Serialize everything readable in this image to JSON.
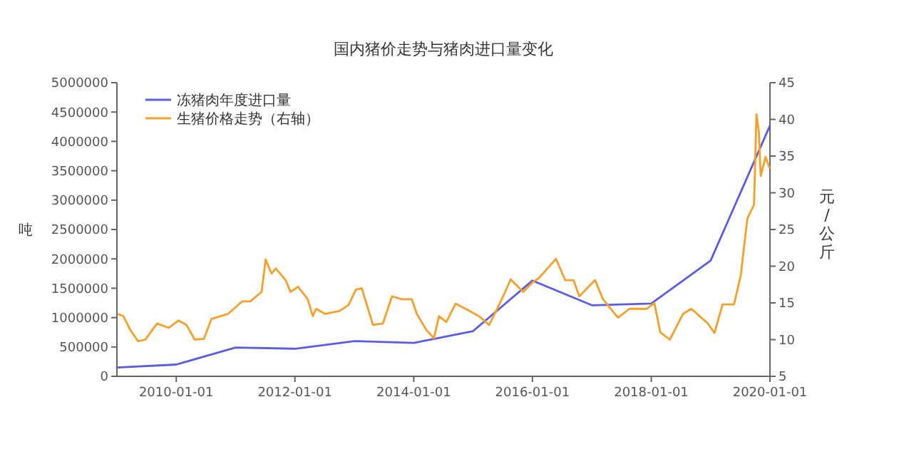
{
  "chart_data": {
    "type": "line",
    "title": "国内猪价走势与猪肉进口量变化",
    "ylabel": "吨",
    "y2label": "元/公斤",
    "legend": "top left",
    "grid": false,
    "line_style": "solid",
    "xlim": [
      "2009-01-01",
      "2020-01-01"
    ],
    "xticks": [
      "2010-01-01",
      "2012-01-01",
      "2014-01-01",
      "2016-01-01",
      "2018-01-01",
      "2020-01-01"
    ],
    "ylim": [
      0,
      5000000
    ],
    "yticks": [
      0,
      500000,
      1000000,
      1500000,
      2000000,
      2500000,
      3000000,
      3500000,
      4000000,
      4500000,
      5000000
    ],
    "y2lim": [
      5,
      45
    ],
    "y2ticks": [
      5,
      10,
      15,
      20,
      25,
      30,
      35,
      40,
      45
    ],
    "series": [
      {
        "name": "冻猪肉年度进口量",
        "color": "#5c5ce0",
        "x": [
          "2009-01-01",
          "2010-01-01",
          "2011-01-01",
          "2012-01-01",
          "2013-01-01",
          "2014-01-01",
          "2015-01-01",
          "2016-01-01",
          "2017-01-01",
          "2018-01-01",
          "2019-01-01",
          "2020-01-01"
        ],
        "values": [
          150000,
          200000,
          490000,
          470000,
          600000,
          570000,
          770000,
          1630000,
          1210000,
          1240000,
          1970000,
          4270000
        ]
      },
      {
        "name": "生猪价格走势（右轴）",
        "color": "#f5a02a",
        "axis": "y2",
        "x": [
          "2009-01-05",
          "2009-02-10",
          "2009-03-25",
          "2009-05-10",
          "2009-06-25",
          "2009-09-05",
          "2009-11-15",
          "2010-01-15",
          "2010-03-05",
          "2010-04-25",
          "2010-06-20",
          "2010-08-05",
          "2010-11-15",
          "2011-02-10",
          "2011-04-01",
          "2011-06-10",
          "2011-07-05",
          "2011-08-10",
          "2011-09-05",
          "2011-11-05",
          "2011-12-05",
          "2012-01-20",
          "2012-03-20",
          "2012-04-20",
          "2012-05-10",
          "2012-07-05",
          "2012-09-30",
          "2012-11-25",
          "2013-01-10",
          "2013-02-15",
          "2013-04-25",
          "2013-06-25",
          "2013-08-20",
          "2013-10-20",
          "2013-12-20",
          "2014-01-20",
          "2014-03-20",
          "2014-05-05",
          "2014-06-05",
          "2014-07-20",
          "2014-09-15",
          "2014-12-10",
          "2015-02-05",
          "2015-04-10",
          "2015-07-05",
          "2015-08-20",
          "2015-11-05",
          "2016-01-01",
          "2016-02-10",
          "2016-05-25",
          "2016-07-20",
          "2016-09-10",
          "2016-10-15",
          "2017-01-20",
          "2017-03-10",
          "2017-06-10",
          "2017-08-20",
          "2017-12-05",
          "2018-01-20",
          "2018-02-25",
          "2018-04-25",
          "2018-07-15",
          "2018-09-05",
          "2018-12-15",
          "2019-01-25",
          "2019-03-15",
          "2019-05-25",
          "2019-07-05",
          "2019-08-15",
          "2019-09-25",
          "2019-10-10",
          "2019-10-25",
          "2019-11-05",
          "2019-12-05",
          "2019-12-31"
        ],
        "values": [
          13.5,
          13.2,
          11.3,
          9.8,
          10.0,
          12.2,
          11.6,
          12.6,
          12.0,
          10.0,
          10.1,
          12.8,
          13.5,
          15.2,
          15.2,
          16.5,
          20.9,
          19.0,
          19.7,
          18.1,
          16.5,
          17.2,
          15.5,
          13.2,
          14.2,
          13.5,
          13.9,
          14.7,
          16.8,
          17.0,
          12.0,
          12.2,
          15.9,
          15.5,
          15.5,
          13.5,
          11.3,
          10.2,
          13.2,
          12.4,
          14.9,
          13.9,
          13.2,
          12.0,
          15.9,
          18.2,
          16.5,
          17.8,
          18.4,
          21.0,
          18.1,
          18.1,
          15.9,
          18.1,
          15.5,
          13.0,
          14.2,
          14.2,
          15.0,
          11.0,
          10.0,
          13.5,
          14.2,
          12.2,
          10.9,
          14.8,
          14.8,
          18.7,
          26.5,
          28.4,
          40.7,
          38.2,
          32.3,
          34.9,
          33.3
        ]
      }
    ]
  }
}
